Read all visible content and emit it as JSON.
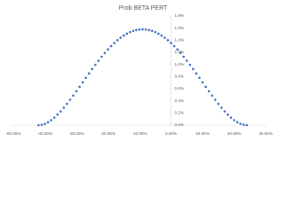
{
  "chart_data": {
    "type": "scatter",
    "title": "Prob BETA PERT",
    "color": "#4472c4",
    "x": [
      -42,
      -41,
      -40,
      -39,
      -38,
      -37,
      -36,
      -35,
      -34,
      -33,
      -32,
      -31,
      -30,
      -29,
      -28,
      -27,
      -26,
      -25,
      -24,
      -23,
      -22,
      -21,
      -20,
      -19,
      -18,
      -17,
      -16,
      -15,
      -14,
      -13,
      -12,
      -11,
      -10,
      -9,
      -8,
      -7,
      -6,
      -5,
      -4,
      -3,
      -2,
      -1,
      0,
      1,
      2,
      3,
      4,
      5,
      6,
      7,
      8,
      9,
      10,
      11,
      12,
      13,
      14,
      15,
      16,
      17,
      18,
      19,
      20,
      21,
      22,
      23,
      24
    ],
    "values": [
      0,
      0.006,
      0.022,
      0.048,
      0.082,
      0.124,
      0.173,
      0.227,
      0.287,
      0.351,
      0.418,
      0.488,
      0.559,
      0.632,
      0.706,
      0.78,
      0.853,
      0.924,
      0.995,
      1.062,
      1.128,
      1.19,
      1.248,
      1.303,
      1.354,
      1.4,
      1.441,
      1.477,
      1.508,
      1.534,
      1.554,
      1.568,
      1.577,
      1.58,
      1.577,
      1.568,
      1.554,
      1.534,
      1.508,
      1.477,
      1.441,
      1.4,
      1.354,
      1.303,
      1.248,
      1.19,
      1.128,
      1.062,
      0.995,
      0.924,
      0.853,
      0.78,
      0.706,
      0.632,
      0.559,
      0.488,
      0.418,
      0.351,
      0.287,
      0.227,
      0.173,
      0.124,
      0.082,
      0.048,
      0.022,
      0.006,
      0
    ],
    "xlim": [
      -50,
      30
    ],
    "xticks": [
      {
        "value": -50,
        "label": "-50.00%"
      },
      {
        "value": -40,
        "label": "-40.00%"
      },
      {
        "value": -30,
        "label": "-30.00%"
      },
      {
        "value": -20,
        "label": "-20.00%"
      },
      {
        "value": -10,
        "label": "-10.00%"
      },
      {
        "value": 0,
        "label": "0.00%"
      },
      {
        "value": 10,
        "label": "10.00%"
      },
      {
        "value": 20,
        "label": "20.00%"
      },
      {
        "value": 30,
        "label": "30.00%"
      }
    ],
    "ylim": [
      0,
      1.8
    ],
    "yticks": [
      {
        "value": 0,
        "label": "0.0%"
      },
      {
        "value": 0.2,
        "label": "0.2%"
      },
      {
        "value": 0.4,
        "label": "0.4%"
      },
      {
        "value": 0.6,
        "label": "0.6%"
      },
      {
        "value": 0.8,
        "label": "0.8%"
      },
      {
        "value": 1.0,
        "label": "1.0%"
      },
      {
        "value": 1.2,
        "label": "1.2%"
      },
      {
        "value": 1.4,
        "label": "1.4%"
      },
      {
        "value": 1.6,
        "label": "1.6%"
      },
      {
        "value": 1.8,
        "label": "1.8%"
      }
    ]
  }
}
